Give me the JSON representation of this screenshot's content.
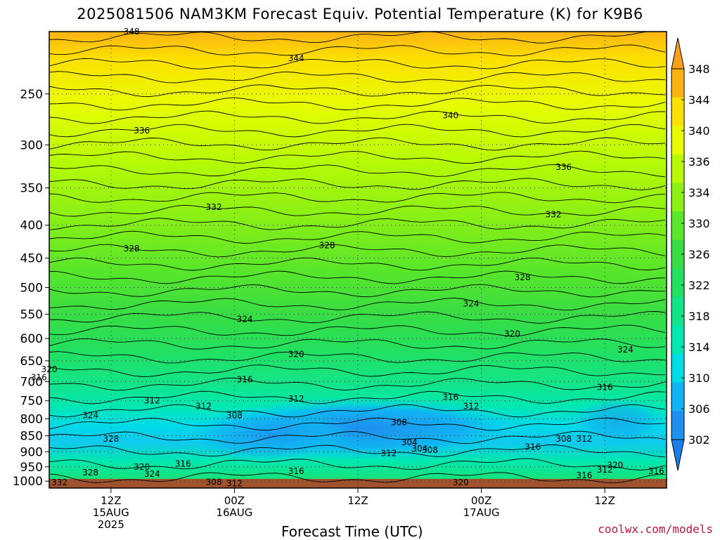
{
  "chart_data": {
    "type": "heatmap",
    "title": "2025081506 NAM3KM Forecast Equiv. Potential Temperature (K) for K9B6",
    "xlabel": "Forecast Time (UTC)",
    "ylabel": "",
    "y_scale": "log-pressure",
    "y_range_hpa": [
      1025,
      200
    ],
    "y_ticks": [
      250,
      300,
      350,
      400,
      450,
      500,
      550,
      600,
      650,
      700,
      750,
      800,
      850,
      900,
      950,
      1000
    ],
    "x_range": [
      "2025-08-15T06Z",
      "2025-08-17T18Z"
    ],
    "x_ticks": [
      {
        "time": "2025-08-15T12Z",
        "label_lines": [
          "12Z",
          "15AUG",
          "2025"
        ]
      },
      {
        "time": "2025-08-16T00Z",
        "label_lines": [
          "00Z",
          "16AUG"
        ]
      },
      {
        "time": "2025-08-16T12Z",
        "label_lines": [
          "12Z"
        ]
      },
      {
        "time": "2025-08-17T00Z",
        "label_lines": [
          "00Z",
          "17AUG"
        ]
      },
      {
        "time": "2025-08-17T12Z",
        "label_lines": [
          "12Z"
        ]
      }
    ],
    "grid": true,
    "colorbar": {
      "placement": "right",
      "ticks": [
        302,
        306,
        310,
        314,
        318,
        322,
        326,
        330,
        334,
        336,
        340,
        344,
        348
      ],
      "colors": [
        "#1f8ff0",
        "#11b3f2",
        "#00dce6",
        "#00e8b0",
        "#14e488",
        "#22e060",
        "#38dd44",
        "#5ae62a",
        "#8cf014",
        "#b8fa05",
        "#e8fc00",
        "#fce000",
        "#fbb314"
      ]
    },
    "contour_labels": [
      {
        "time": "2025-08-15T14Z",
        "p": 200,
        "text": "348"
      },
      {
        "time": "2025-08-16T06Z",
        "p": 220,
        "text": "344"
      },
      {
        "time": "2025-08-15T15Z",
        "p": 285,
        "text": "336"
      },
      {
        "time": "2025-08-16T21Z",
        "p": 270,
        "text": "340"
      },
      {
        "time": "2025-08-17T08Z",
        "p": 325,
        "text": "336"
      },
      {
        "time": "2025-08-15T22Z",
        "p": 375,
        "text": "332"
      },
      {
        "time": "2025-08-17T07Z",
        "p": 385,
        "text": "332"
      },
      {
        "time": "2025-08-15T14Z",
        "p": 435,
        "text": "328"
      },
      {
        "time": "2025-08-16T09Z",
        "p": 430,
        "text": "328"
      },
      {
        "time": "2025-08-17T04Z",
        "p": 482,
        "text": "328"
      },
      {
        "time": "2025-08-16T01Z",
        "p": 560,
        "text": "324"
      },
      {
        "time": "2025-08-16T23Z",
        "p": 530,
        "text": "324"
      },
      {
        "time": "2025-08-17T14Z",
        "p": 625,
        "text": "324"
      },
      {
        "time": "2025-08-16T06Z",
        "p": 635,
        "text": "320"
      },
      {
        "time": "2025-08-17T03Z",
        "p": 590,
        "text": "320"
      },
      {
        "time": "2025-08-15T06Z",
        "p": 670,
        "text": "320"
      },
      {
        "time": "2025-08-15T05Z",
        "p": 690,
        "text": "316"
      },
      {
        "time": "2025-08-16T01Z",
        "p": 695,
        "text": "316"
      },
      {
        "time": "2025-08-16T21Z",
        "p": 740,
        "text": "316"
      },
      {
        "time": "2025-08-17T12Z",
        "p": 715,
        "text": "316"
      },
      {
        "time": "2025-08-15T21Z",
        "p": 765,
        "text": "312"
      },
      {
        "time": "2025-08-16T06Z",
        "p": 745,
        "text": "312"
      },
      {
        "time": "2025-08-16T23Z",
        "p": 765,
        "text": "312"
      },
      {
        "time": "2025-08-16T00Z",
        "p": 790,
        "text": "308"
      },
      {
        "time": "2025-08-16T16Z",
        "p": 810,
        "text": "308"
      },
      {
        "time": "2025-08-16T17Z",
        "p": 870,
        "text": "304"
      },
      {
        "time": "2025-08-16T18Z",
        "p": 890,
        "text": "304"
      },
      {
        "time": "2025-08-16T15Z",
        "p": 905,
        "text": "312"
      },
      {
        "time": "2025-08-16T19Z",
        "p": 895,
        "text": "308"
      },
      {
        "time": "2025-08-17T08Z",
        "p": 860,
        "text": "308"
      },
      {
        "time": "2025-08-17T10Z",
        "p": 860,
        "text": "312"
      },
      {
        "time": "2025-08-17T05Z",
        "p": 885,
        "text": "316"
      },
      {
        "time": "2025-08-15T12Z",
        "p": 860,
        "text": "328"
      },
      {
        "time": "2025-08-15T10Z",
        "p": 790,
        "text": "324"
      },
      {
        "time": "2025-08-15T16Z",
        "p": 750,
        "text": "312"
      },
      {
        "time": "2025-08-15T15Z",
        "p": 950,
        "text": "320"
      },
      {
        "time": "2025-08-15T19Z",
        "p": 940,
        "text": "316"
      },
      {
        "time": "2025-08-15T16Z",
        "p": 975,
        "text": "324"
      },
      {
        "time": "2025-08-15T10Z",
        "p": 970,
        "text": "328"
      },
      {
        "time": "2025-08-15T07Z",
        "p": 1005,
        "text": "332"
      },
      {
        "time": "2025-08-15T22Z",
        "p": 1003,
        "text": "308"
      },
      {
        "time": "2025-08-16T00Z",
        "p": 1008,
        "text": "312"
      },
      {
        "time": "2025-08-16T06Z",
        "p": 965,
        "text": "316"
      },
      {
        "time": "2025-08-16T22Z",
        "p": 1005,
        "text": "320"
      },
      {
        "time": "2025-08-17T10Z",
        "p": 980,
        "text": "316"
      },
      {
        "time": "2025-08-17T12Z",
        "p": 960,
        "text": "312"
      },
      {
        "time": "2025-08-17T13Z",
        "p": 945,
        "text": "320"
      },
      {
        "time": "2025-08-17T17Z",
        "p": 965,
        "text": "316"
      }
    ]
  },
  "credit": "coolwx.com/models"
}
